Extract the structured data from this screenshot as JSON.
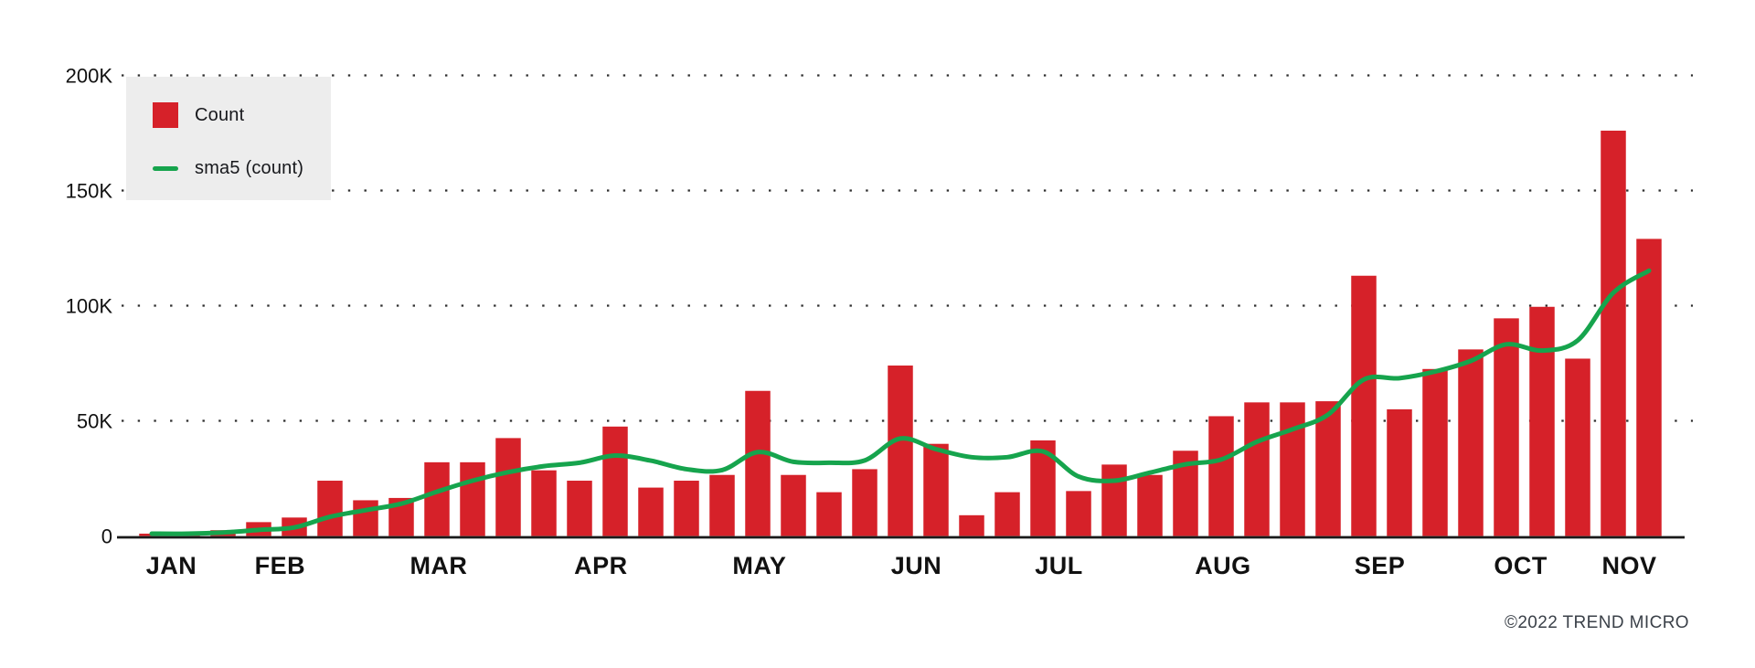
{
  "page": {
    "background": "#ffffff"
  },
  "legend": {
    "items": [
      {
        "label": "Count",
        "swatch": "square",
        "color": "#D62129"
      },
      {
        "label": "sma5 (count)",
        "swatch": "line",
        "color": "#16A44D"
      }
    ]
  },
  "footer": {
    "copyright": "©2022 TREND MICRO"
  },
  "chart_data": {
    "type": "bar",
    "title": "",
    "xlabel": "",
    "ylabel": "",
    "x_unit": "week",
    "weeks": 43,
    "categories_note": "43 weekly bars spanning January through November 2022; month labels placed under the first week of each month",
    "month_labels": [
      {
        "label": "JAN",
        "week": 0.55
      },
      {
        "label": "FEB",
        "week": 3.6
      },
      {
        "label": "MAR",
        "week": 8.05
      },
      {
        "label": "APR",
        "week": 12.6
      },
      {
        "label": "MAY",
        "week": 17.05
      },
      {
        "label": "JUN",
        "week": 21.45
      },
      {
        "label": "JUL",
        "week": 25.45
      },
      {
        "label": "AUG",
        "week": 30.05
      },
      {
        "label": "SEP",
        "week": 34.45
      },
      {
        "label": "OCT",
        "week": 38.4
      },
      {
        "label": "NOV",
        "week": 41.45
      }
    ],
    "series": [
      {
        "name": "Count",
        "type": "bar",
        "color": "#D62129",
        "values": [
          1000,
          1000,
          2500,
          6000,
          8000,
          24000,
          15500,
          16500,
          32000,
          32000,
          42500,
          28500,
          24000,
          47500,
          21000,
          24000,
          26500,
          63000,
          26500,
          19000,
          29000,
          74000,
          40000,
          9000,
          19000,
          41500,
          19500,
          31000,
          26500,
          37000,
          52000,
          58000,
          58000,
          58500,
          113000,
          55000,
          72500,
          81000,
          94500,
          99500,
          77000,
          176000,
          129000
        ]
      },
      {
        "name": "sma5 (count)",
        "type": "line",
        "color": "#16A44D",
        "derived": "trailing 5-week simple moving average of Count",
        "values": [
          1000,
          1000,
          1500,
          2625,
          3700,
          8300,
          11200,
          14000,
          19200,
          24000,
          27700,
          30300,
          31800,
          34900,
          32700,
          29000,
          28600,
          36400,
          32200,
          31800,
          32800,
          42300,
          37700,
          34200,
          34200,
          36700,
          25800,
          24000,
          27500,
          31100,
          33200,
          40900,
          46300,
          52700,
          67900,
          68500,
          71400,
          76000,
          83200,
          80500,
          84900,
          105600,
          115200
        ]
      }
    ],
    "ylim": [
      0,
      200000
    ],
    "yticks": [
      {
        "value": 0,
        "label": "0"
      },
      {
        "value": 50000,
        "label": "50K"
      },
      {
        "value": 100000,
        "label": "100K"
      },
      {
        "value": 150000,
        "label": "150K"
      },
      {
        "value": 200000,
        "label": "200K"
      }
    ],
    "grid": "dotted-horizontal",
    "grid_color": "#2e2e2e",
    "axis_color": "#1a1a1a",
    "tick_color": "#111111",
    "legend_position": "top-left"
  }
}
